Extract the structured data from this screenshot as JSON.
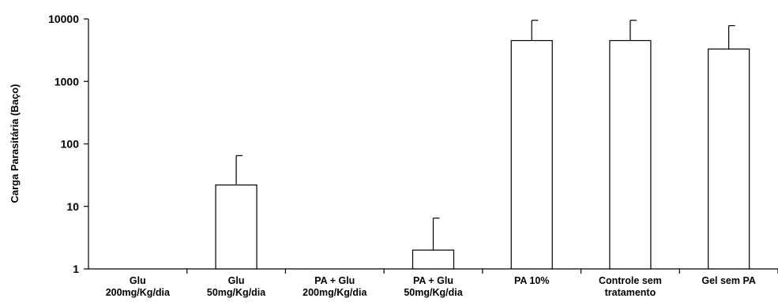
{
  "chart_data": {
    "type": "bar",
    "ylabel": "Carga Parasitária (Baço)",
    "xlabel": "",
    "yscale": "log",
    "ylim": [
      1,
      10000
    ],
    "yticks": [
      1,
      10,
      100,
      1000,
      10000
    ],
    "ytick_labels": [
      "1",
      "10",
      "100",
      "1000",
      "10000"
    ],
    "categories": [
      [
        "Glu",
        "200mg/Kg/dia"
      ],
      [
        "Glu",
        "50mg/Kg/dia"
      ],
      [
        "PA + Glu",
        "200mg/Kg/dia"
      ],
      [
        "PA + Glu",
        "50mg/Kg/dia"
      ],
      [
        "PA 10%"
      ],
      [
        "Controle sem",
        "tratamento"
      ],
      [
        "Gel sem PA"
      ]
    ],
    "values": [
      1,
      22,
      1,
      2,
      4500,
      4500,
      3300
    ],
    "error_upper": [
      1,
      65,
      1,
      6.5,
      9500,
      9500,
      7800
    ],
    "bar_fill": "#ffffff",
    "bar_stroke": "#000000",
    "grid": false
  }
}
